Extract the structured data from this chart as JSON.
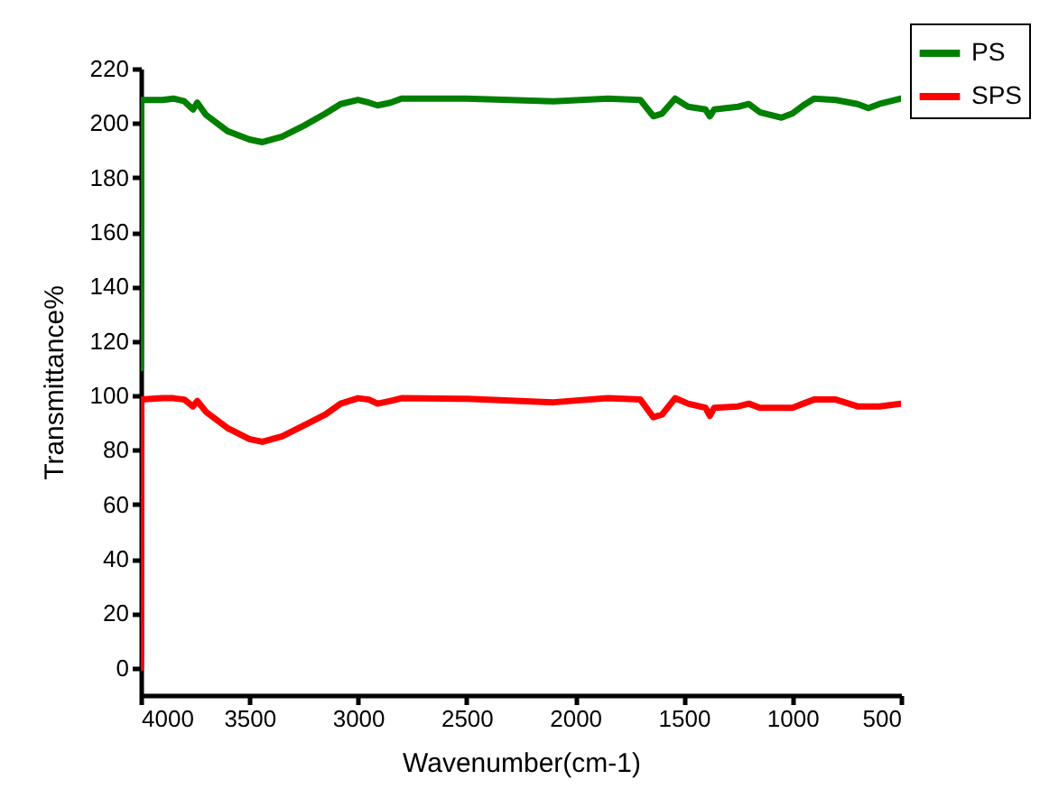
{
  "chart_data": {
    "type": "line",
    "xlabel": "Wavenumber(cm-1)",
    "ylabel": "Transmittance%",
    "xlim": [
      4000,
      500
    ],
    "xticks": [
      4000,
      3500,
      3000,
      2500,
      2000,
      1500,
      1000,
      500
    ],
    "ylim": [
      -10,
      220
    ],
    "yticks": [
      0,
      20,
      40,
      60,
      80,
      100,
      120,
      140,
      160,
      180,
      200,
      220
    ],
    "grid": false,
    "legend": "top right",
    "marker": "none",
    "line_style": "solid",
    "series": [
      {
        "name": "PS",
        "color": "#008000",
        "x": [
          4000,
          3998,
          3900,
          3850,
          3800,
          3760,
          3740,
          3700,
          3600,
          3500,
          3440,
          3350,
          3250,
          3150,
          3080,
          3000,
          2950,
          2910,
          2850,
          2800,
          2500,
          2100,
          1850,
          1700,
          1640,
          1600,
          1540,
          1480,
          1400,
          1380,
          1360,
          1250,
          1200,
          1150,
          1050,
          1000,
          950,
          900,
          800,
          700,
          650,
          600,
          500
        ],
        "values": [
          110,
          208.5,
          208.5,
          209,
          208,
          205,
          207.5,
          203,
          197,
          194,
          193,
          195,
          199,
          203.5,
          207,
          208.5,
          207.5,
          206.5,
          207.5,
          209,
          209,
          208,
          209,
          208.5,
          202.5,
          203.5,
          209,
          206,
          205,
          202.5,
          205,
          206,
          207,
          204,
          202,
          203.5,
          206.5,
          209,
          208.5,
          207,
          205.5,
          207,
          209
        ]
      },
      {
        "name": "SPS",
        "color": "#ff0000",
        "x": [
          4000,
          3998,
          3900,
          3850,
          3800,
          3760,
          3740,
          3700,
          3600,
          3500,
          3440,
          3350,
          3250,
          3150,
          3080,
          3000,
          2950,
          2910,
          2850,
          2800,
          2500,
          2100,
          1850,
          1700,
          1640,
          1600,
          1540,
          1480,
          1400,
          1380,
          1360,
          1250,
          1200,
          1150,
          1050,
          1000,
          950,
          900,
          800,
          700,
          600,
          500
        ],
        "values": [
          0,
          98.5,
          99,
          99,
          98.5,
          96,
          98,
          94,
          88,
          84,
          83,
          85,
          89,
          93,
          97,
          99,
          98.5,
          97,
          98,
          99,
          98.8,
          97.5,
          99,
          98.5,
          92,
          93,
          99,
          97,
          95.5,
          92.5,
          95.5,
          96,
          97,
          95.5,
          95.5,
          95.5,
          97,
          98.5,
          98.5,
          96,
          96,
          97
        ]
      }
    ]
  }
}
